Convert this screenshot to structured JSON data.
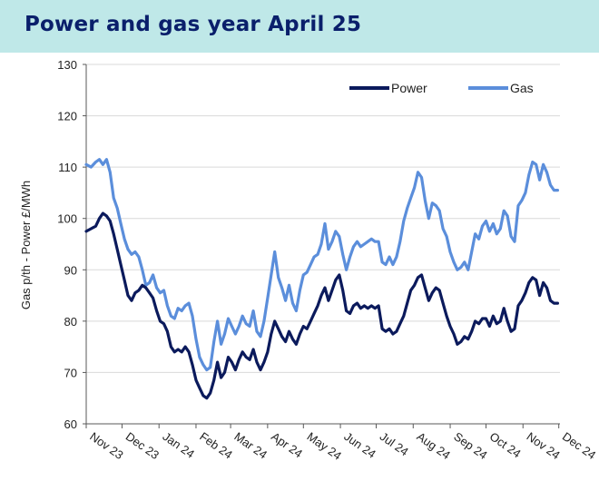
{
  "header": {
    "title": "Power and gas year April 25"
  },
  "chart_data": {
    "type": "line",
    "title": "Power and gas year April 25",
    "ylabel": "Gas p/th - Power £/MWh",
    "xlabel": "",
    "ylim": [
      60,
      130
    ],
    "yticks": [
      60,
      70,
      80,
      90,
      100,
      110,
      120,
      130
    ],
    "xlim": [
      "2023-11-01",
      "2024-12-02"
    ],
    "xticks": [
      {
        "label": "Nov 23",
        "date": "2023-11-01"
      },
      {
        "label": "Dec 23",
        "date": "2023-12-01"
      },
      {
        "label": "Jan 24",
        "date": "2024-01-01"
      },
      {
        "label": "Feb 24",
        "date": "2024-02-01"
      },
      {
        "label": "Mar 24",
        "date": "2024-03-01"
      },
      {
        "label": "Apr 24",
        "date": "2024-04-01"
      },
      {
        "label": "May 24",
        "date": "2024-05-01"
      },
      {
        "label": "Jun 24",
        "date": "2024-06-01"
      },
      {
        "label": "Jul 24",
        "date": "2024-07-01"
      },
      {
        "label": "Aug 24",
        "date": "2024-08-01"
      },
      {
        "label": "Sep 24",
        "date": "2024-09-01"
      },
      {
        "label": "Oct 24",
        "date": "2024-10-01"
      },
      {
        "label": "Nov 24",
        "date": "2024-11-01"
      },
      {
        "label": "Dec 24",
        "date": "2024-12-01"
      }
    ],
    "grid": "horizontal",
    "legend_position": "top-right",
    "series": [
      {
        "name": "Power",
        "color": "#0b1a5c",
        "points": [
          [
            "2023-11-01",
            97.5
          ],
          [
            "2023-11-05",
            98.0
          ],
          [
            "2023-11-09",
            98.5
          ],
          [
            "2023-11-12",
            100.0
          ],
          [
            "2023-11-15",
            101.0
          ],
          [
            "2023-11-18",
            100.5
          ],
          [
            "2023-11-21",
            99.5
          ],
          [
            "2023-11-24",
            97.0
          ],
          [
            "2023-11-27",
            94.0
          ],
          [
            "2023-11-30",
            91.0
          ],
          [
            "2023-12-03",
            88.0
          ],
          [
            "2023-12-06",
            85.0
          ],
          [
            "2023-12-09",
            84.0
          ],
          [
            "2023-12-12",
            85.5
          ],
          [
            "2023-12-15",
            86.0
          ],
          [
            "2023-12-18",
            87.0
          ],
          [
            "2023-12-21",
            86.5
          ],
          [
            "2023-12-24",
            85.5
          ],
          [
            "2023-12-27",
            84.5
          ],
          [
            "2023-12-30",
            82.0
          ],
          [
            "2024-01-02",
            80.0
          ],
          [
            "2024-01-05",
            79.5
          ],
          [
            "2024-01-08",
            78.0
          ],
          [
            "2024-01-11",
            75.0
          ],
          [
            "2024-01-14",
            74.0
          ],
          [
            "2024-01-17",
            74.5
          ],
          [
            "2024-01-20",
            74.0
          ],
          [
            "2024-01-23",
            75.0
          ],
          [
            "2024-01-26",
            74.0
          ],
          [
            "2024-01-29",
            71.5
          ],
          [
            "2024-02-01",
            68.5
          ],
          [
            "2024-02-04",
            67.0
          ],
          [
            "2024-02-07",
            65.5
          ],
          [
            "2024-02-10",
            65.0
          ],
          [
            "2024-02-13",
            66.0
          ],
          [
            "2024-02-16",
            68.5
          ],
          [
            "2024-02-19",
            72.0
          ],
          [
            "2024-02-22",
            69.0
          ],
          [
            "2024-02-25",
            70.0
          ],
          [
            "2024-02-28",
            73.0
          ],
          [
            "2024-03-02",
            72.0
          ],
          [
            "2024-03-05",
            70.5
          ],
          [
            "2024-03-08",
            72.5
          ],
          [
            "2024-03-11",
            74.0
          ],
          [
            "2024-03-14",
            73.0
          ],
          [
            "2024-03-17",
            72.5
          ],
          [
            "2024-03-20",
            74.5
          ],
          [
            "2024-03-23",
            72.0
          ],
          [
            "2024-03-26",
            70.5
          ],
          [
            "2024-03-29",
            72.0
          ],
          [
            "2024-04-01",
            74.0
          ],
          [
            "2024-04-04",
            77.5
          ],
          [
            "2024-04-07",
            80.0
          ],
          [
            "2024-04-10",
            78.5
          ],
          [
            "2024-04-13",
            77.0
          ],
          [
            "2024-04-16",
            76.0
          ],
          [
            "2024-04-19",
            78.0
          ],
          [
            "2024-04-22",
            76.5
          ],
          [
            "2024-04-25",
            75.5
          ],
          [
            "2024-04-28",
            77.5
          ],
          [
            "2024-05-01",
            79.0
          ],
          [
            "2024-05-04",
            78.5
          ],
          [
            "2024-05-07",
            80.0
          ],
          [
            "2024-05-10",
            81.5
          ],
          [
            "2024-05-13",
            83.0
          ],
          [
            "2024-05-16",
            85.0
          ],
          [
            "2024-05-19",
            86.5
          ],
          [
            "2024-05-22",
            84.0
          ],
          [
            "2024-05-25",
            86.0
          ],
          [
            "2024-05-28",
            88.0
          ],
          [
            "2024-05-31",
            89.0
          ],
          [
            "2024-06-03",
            86.0
          ],
          [
            "2024-06-06",
            82.0
          ],
          [
            "2024-06-09",
            81.5
          ],
          [
            "2024-06-12",
            83.0
          ],
          [
            "2024-06-15",
            83.5
          ],
          [
            "2024-06-18",
            82.5
          ],
          [
            "2024-06-21",
            83.0
          ],
          [
            "2024-06-24",
            82.5
          ],
          [
            "2024-06-27",
            83.0
          ],
          [
            "2024-06-30",
            82.5
          ],
          [
            "2024-07-03",
            83.0
          ],
          [
            "2024-07-06",
            78.5
          ],
          [
            "2024-07-09",
            78.0
          ],
          [
            "2024-07-12",
            78.5
          ],
          [
            "2024-07-15",
            77.5
          ],
          [
            "2024-07-18",
            78.0
          ],
          [
            "2024-07-21",
            79.5
          ],
          [
            "2024-07-24",
            81.0
          ],
          [
            "2024-07-27",
            83.5
          ],
          [
            "2024-07-30",
            86.0
          ],
          [
            "2024-08-02",
            87.0
          ],
          [
            "2024-08-05",
            88.5
          ],
          [
            "2024-08-08",
            89.0
          ],
          [
            "2024-08-11",
            86.5
          ],
          [
            "2024-08-14",
            84.0
          ],
          [
            "2024-08-17",
            85.5
          ],
          [
            "2024-08-20",
            86.5
          ],
          [
            "2024-08-23",
            86.0
          ],
          [
            "2024-08-26",
            83.5
          ],
          [
            "2024-08-29",
            81.0
          ],
          [
            "2024-09-01",
            79.0
          ],
          [
            "2024-09-04",
            77.5
          ],
          [
            "2024-09-07",
            75.5
          ],
          [
            "2024-09-10",
            76.0
          ],
          [
            "2024-09-13",
            77.0
          ],
          [
            "2024-09-16",
            76.5
          ],
          [
            "2024-09-19",
            78.0
          ],
          [
            "2024-09-22",
            80.0
          ],
          [
            "2024-09-25",
            79.5
          ],
          [
            "2024-09-28",
            80.5
          ],
          [
            "2024-10-01",
            80.5
          ],
          [
            "2024-10-04",
            79.0
          ],
          [
            "2024-10-07",
            81.0
          ],
          [
            "2024-10-10",
            79.5
          ],
          [
            "2024-10-13",
            80.0
          ],
          [
            "2024-10-16",
            82.5
          ],
          [
            "2024-10-19",
            80.0
          ],
          [
            "2024-10-22",
            78.0
          ],
          [
            "2024-10-25",
            78.5
          ],
          [
            "2024-10-28",
            83.0
          ],
          [
            "2024-10-31",
            84.0
          ],
          [
            "2024-11-03",
            85.5
          ],
          [
            "2024-11-06",
            87.5
          ],
          [
            "2024-11-09",
            88.5
          ],
          [
            "2024-11-12",
            88.0
          ],
          [
            "2024-11-15",
            85.0
          ],
          [
            "2024-11-18",
            87.5
          ],
          [
            "2024-11-21",
            86.5
          ],
          [
            "2024-11-24",
            84.0
          ],
          [
            "2024-11-27",
            83.5
          ],
          [
            "2024-11-30",
            83.5
          ]
        ]
      },
      {
        "name": "Gas",
        "color": "#5b8edb",
        "points": [
          [
            "2023-11-01",
            110.5
          ],
          [
            "2023-11-05",
            110.0
          ],
          [
            "2023-11-09",
            111.0
          ],
          [
            "2023-11-12",
            111.5
          ],
          [
            "2023-11-15",
            110.5
          ],
          [
            "2023-11-18",
            111.5
          ],
          [
            "2023-11-21",
            109.0
          ],
          [
            "2023-11-24",
            104.0
          ],
          [
            "2023-11-27",
            102.0
          ],
          [
            "2023-11-30",
            99.0
          ],
          [
            "2023-12-03",
            96.0
          ],
          [
            "2023-12-06",
            94.0
          ],
          [
            "2023-12-09",
            93.0
          ],
          [
            "2023-12-12",
            93.5
          ],
          [
            "2023-12-15",
            92.5
          ],
          [
            "2023-12-18",
            90.0
          ],
          [
            "2023-12-21",
            87.0
          ],
          [
            "2023-12-24",
            87.5
          ],
          [
            "2023-12-27",
            89.0
          ],
          [
            "2023-12-30",
            86.5
          ],
          [
            "2024-01-02",
            85.5
          ],
          [
            "2024-01-05",
            86.0
          ],
          [
            "2024-01-08",
            83.0
          ],
          [
            "2024-01-11",
            81.0
          ],
          [
            "2024-01-14",
            80.5
          ],
          [
            "2024-01-17",
            82.5
          ],
          [
            "2024-01-20",
            82.0
          ],
          [
            "2024-01-23",
            83.0
          ],
          [
            "2024-01-26",
            83.5
          ],
          [
            "2024-01-29",
            81.0
          ],
          [
            "2024-02-01",
            76.5
          ],
          [
            "2024-02-04",
            73.0
          ],
          [
            "2024-02-07",
            71.5
          ],
          [
            "2024-02-10",
            70.5
          ],
          [
            "2024-02-13",
            71.0
          ],
          [
            "2024-02-16",
            76.0
          ],
          [
            "2024-02-19",
            80.0
          ],
          [
            "2024-02-22",
            75.5
          ],
          [
            "2024-02-25",
            77.5
          ],
          [
            "2024-02-28",
            80.5
          ],
          [
            "2024-03-02",
            79.0
          ],
          [
            "2024-03-05",
            77.5
          ],
          [
            "2024-03-08",
            79.0
          ],
          [
            "2024-03-11",
            81.0
          ],
          [
            "2024-03-14",
            79.5
          ],
          [
            "2024-03-17",
            79.0
          ],
          [
            "2024-03-20",
            82.0
          ],
          [
            "2024-03-23",
            78.0
          ],
          [
            "2024-03-26",
            77.0
          ],
          [
            "2024-03-29",
            80.0
          ],
          [
            "2024-04-01",
            84.5
          ],
          [
            "2024-04-04",
            89.0
          ],
          [
            "2024-04-07",
            93.5
          ],
          [
            "2024-04-10",
            88.5
          ],
          [
            "2024-04-13",
            86.5
          ],
          [
            "2024-04-16",
            84.0
          ],
          [
            "2024-04-19",
            87.0
          ],
          [
            "2024-04-22",
            83.5
          ],
          [
            "2024-04-25",
            82.0
          ],
          [
            "2024-04-28",
            86.0
          ],
          [
            "2024-05-01",
            89.0
          ],
          [
            "2024-05-04",
            89.5
          ],
          [
            "2024-05-07",
            91.0
          ],
          [
            "2024-05-10",
            92.5
          ],
          [
            "2024-05-13",
            93.0
          ],
          [
            "2024-05-16",
            95.0
          ],
          [
            "2024-05-19",
            99.0
          ],
          [
            "2024-05-22",
            94.0
          ],
          [
            "2024-05-25",
            95.5
          ],
          [
            "2024-05-28",
            97.5
          ],
          [
            "2024-05-31",
            96.5
          ],
          [
            "2024-06-03",
            93.0
          ],
          [
            "2024-06-06",
            90.0
          ],
          [
            "2024-06-09",
            92.5
          ],
          [
            "2024-06-12",
            94.5
          ],
          [
            "2024-06-15",
            95.5
          ],
          [
            "2024-06-18",
            94.5
          ],
          [
            "2024-06-21",
            95.0
          ],
          [
            "2024-06-24",
            95.5
          ],
          [
            "2024-06-27",
            96.0
          ],
          [
            "2024-06-30",
            95.5
          ],
          [
            "2024-07-03",
            95.5
          ],
          [
            "2024-07-06",
            91.5
          ],
          [
            "2024-07-09",
            91.0
          ],
          [
            "2024-07-12",
            92.5
          ],
          [
            "2024-07-15",
            91.0
          ],
          [
            "2024-07-18",
            92.5
          ],
          [
            "2024-07-21",
            95.5
          ],
          [
            "2024-07-24",
            99.5
          ],
          [
            "2024-07-27",
            102.0
          ],
          [
            "2024-07-30",
            104.0
          ],
          [
            "2024-08-02",
            106.0
          ],
          [
            "2024-08-05",
            109.0
          ],
          [
            "2024-08-08",
            108.0
          ],
          [
            "2024-08-11",
            103.5
          ],
          [
            "2024-08-14",
            100.0
          ],
          [
            "2024-08-17",
            103.0
          ],
          [
            "2024-08-20",
            102.5
          ],
          [
            "2024-08-23",
            101.5
          ],
          [
            "2024-08-26",
            98.0
          ],
          [
            "2024-08-29",
            96.5
          ],
          [
            "2024-09-01",
            93.5
          ],
          [
            "2024-09-04",
            91.5
          ],
          [
            "2024-09-07",
            90.0
          ],
          [
            "2024-09-10",
            90.5
          ],
          [
            "2024-09-13",
            91.5
          ],
          [
            "2024-09-16",
            90.0
          ],
          [
            "2024-09-19",
            93.5
          ],
          [
            "2024-09-22",
            97.0
          ],
          [
            "2024-09-25",
            96.0
          ],
          [
            "2024-09-28",
            98.5
          ],
          [
            "2024-10-01",
            99.5
          ],
          [
            "2024-10-04",
            97.5
          ],
          [
            "2024-10-07",
            99.0
          ],
          [
            "2024-10-10",
            97.0
          ],
          [
            "2024-10-13",
            98.0
          ],
          [
            "2024-10-16",
            101.5
          ],
          [
            "2024-10-19",
            100.5
          ],
          [
            "2024-10-22",
            96.5
          ],
          [
            "2024-10-25",
            95.5
          ],
          [
            "2024-10-28",
            102.5
          ],
          [
            "2024-10-31",
            103.5
          ],
          [
            "2024-11-03",
            105.0
          ],
          [
            "2024-11-06",
            108.5
          ],
          [
            "2024-11-09",
            111.0
          ],
          [
            "2024-11-12",
            110.5
          ],
          [
            "2024-11-15",
            107.5
          ],
          [
            "2024-11-18",
            110.5
          ],
          [
            "2024-11-21",
            109.0
          ],
          [
            "2024-11-24",
            106.5
          ],
          [
            "2024-11-27",
            105.5
          ],
          [
            "2024-11-30",
            105.5
          ]
        ]
      }
    ]
  }
}
